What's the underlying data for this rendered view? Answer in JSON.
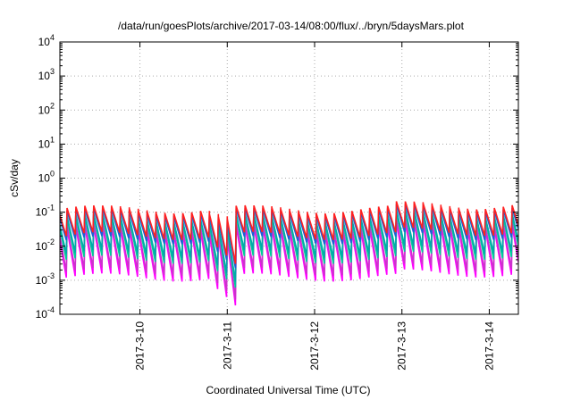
{
  "chart_data": {
    "type": "line",
    "title": "/data/run/goesPlots/archive/2017-03-14/08:00/flux/../bryn/5daysMars.plot",
    "xlabel": "Coordinated Universal Time (UTC)",
    "ylabel": "cSv/day",
    "y_scale": "log",
    "ylim": [
      0.0001,
      10000
    ],
    "y_ticks": [
      {
        "value": 0.0001,
        "base": "10",
        "exp": "-4"
      },
      {
        "value": 0.001,
        "base": "10",
        "exp": "-3"
      },
      {
        "value": 0.01,
        "base": "10",
        "exp": "-2"
      },
      {
        "value": 0.1,
        "base": "10",
        "exp": "-1"
      },
      {
        "value": 1,
        "base": "10",
        "exp": "0"
      },
      {
        "value": 10,
        "base": "10",
        "exp": "1"
      },
      {
        "value": 100,
        "base": "10",
        "exp": "2"
      },
      {
        "value": 1000,
        "base": "10",
        "exp": "3"
      },
      {
        "value": 10000,
        "base": "10",
        "exp": "4"
      }
    ],
    "xlim": [
      "2017-03-09T02:00",
      "2017-03-14T08:00"
    ],
    "x_ticks": [
      {
        "value": "2017-03-10T00:00",
        "label": "2017-3-10"
      },
      {
        "value": "2017-03-11T00:00",
        "label": "2017-3-11"
      },
      {
        "value": "2017-03-12T00:00",
        "label": "2017-3-12"
      },
      {
        "value": "2017-03-13T00:00",
        "label": "2017-3-13"
      },
      {
        "value": "2017-03-14T00:00",
        "label": "2017-3-14"
      }
    ],
    "grid": true,
    "legend": "none",
    "series": [
      {
        "color": "#ff00ff",
        "peak": 0.03,
        "trough": 0.0012
      },
      {
        "color": "#cc33cc",
        "peak": 0.04,
        "trough": 0.0018
      },
      {
        "color": "#00cc99",
        "peak": 0.06,
        "trough": 0.004
      },
      {
        "color": "#00aaaa",
        "peak": 0.07,
        "trough": 0.006
      },
      {
        "color": "#1e5fd6",
        "peak": 0.1,
        "trough": 0.015
      },
      {
        "color": "#ff2020",
        "peak": 0.12,
        "trough": 0.02
      }
    ]
  }
}
